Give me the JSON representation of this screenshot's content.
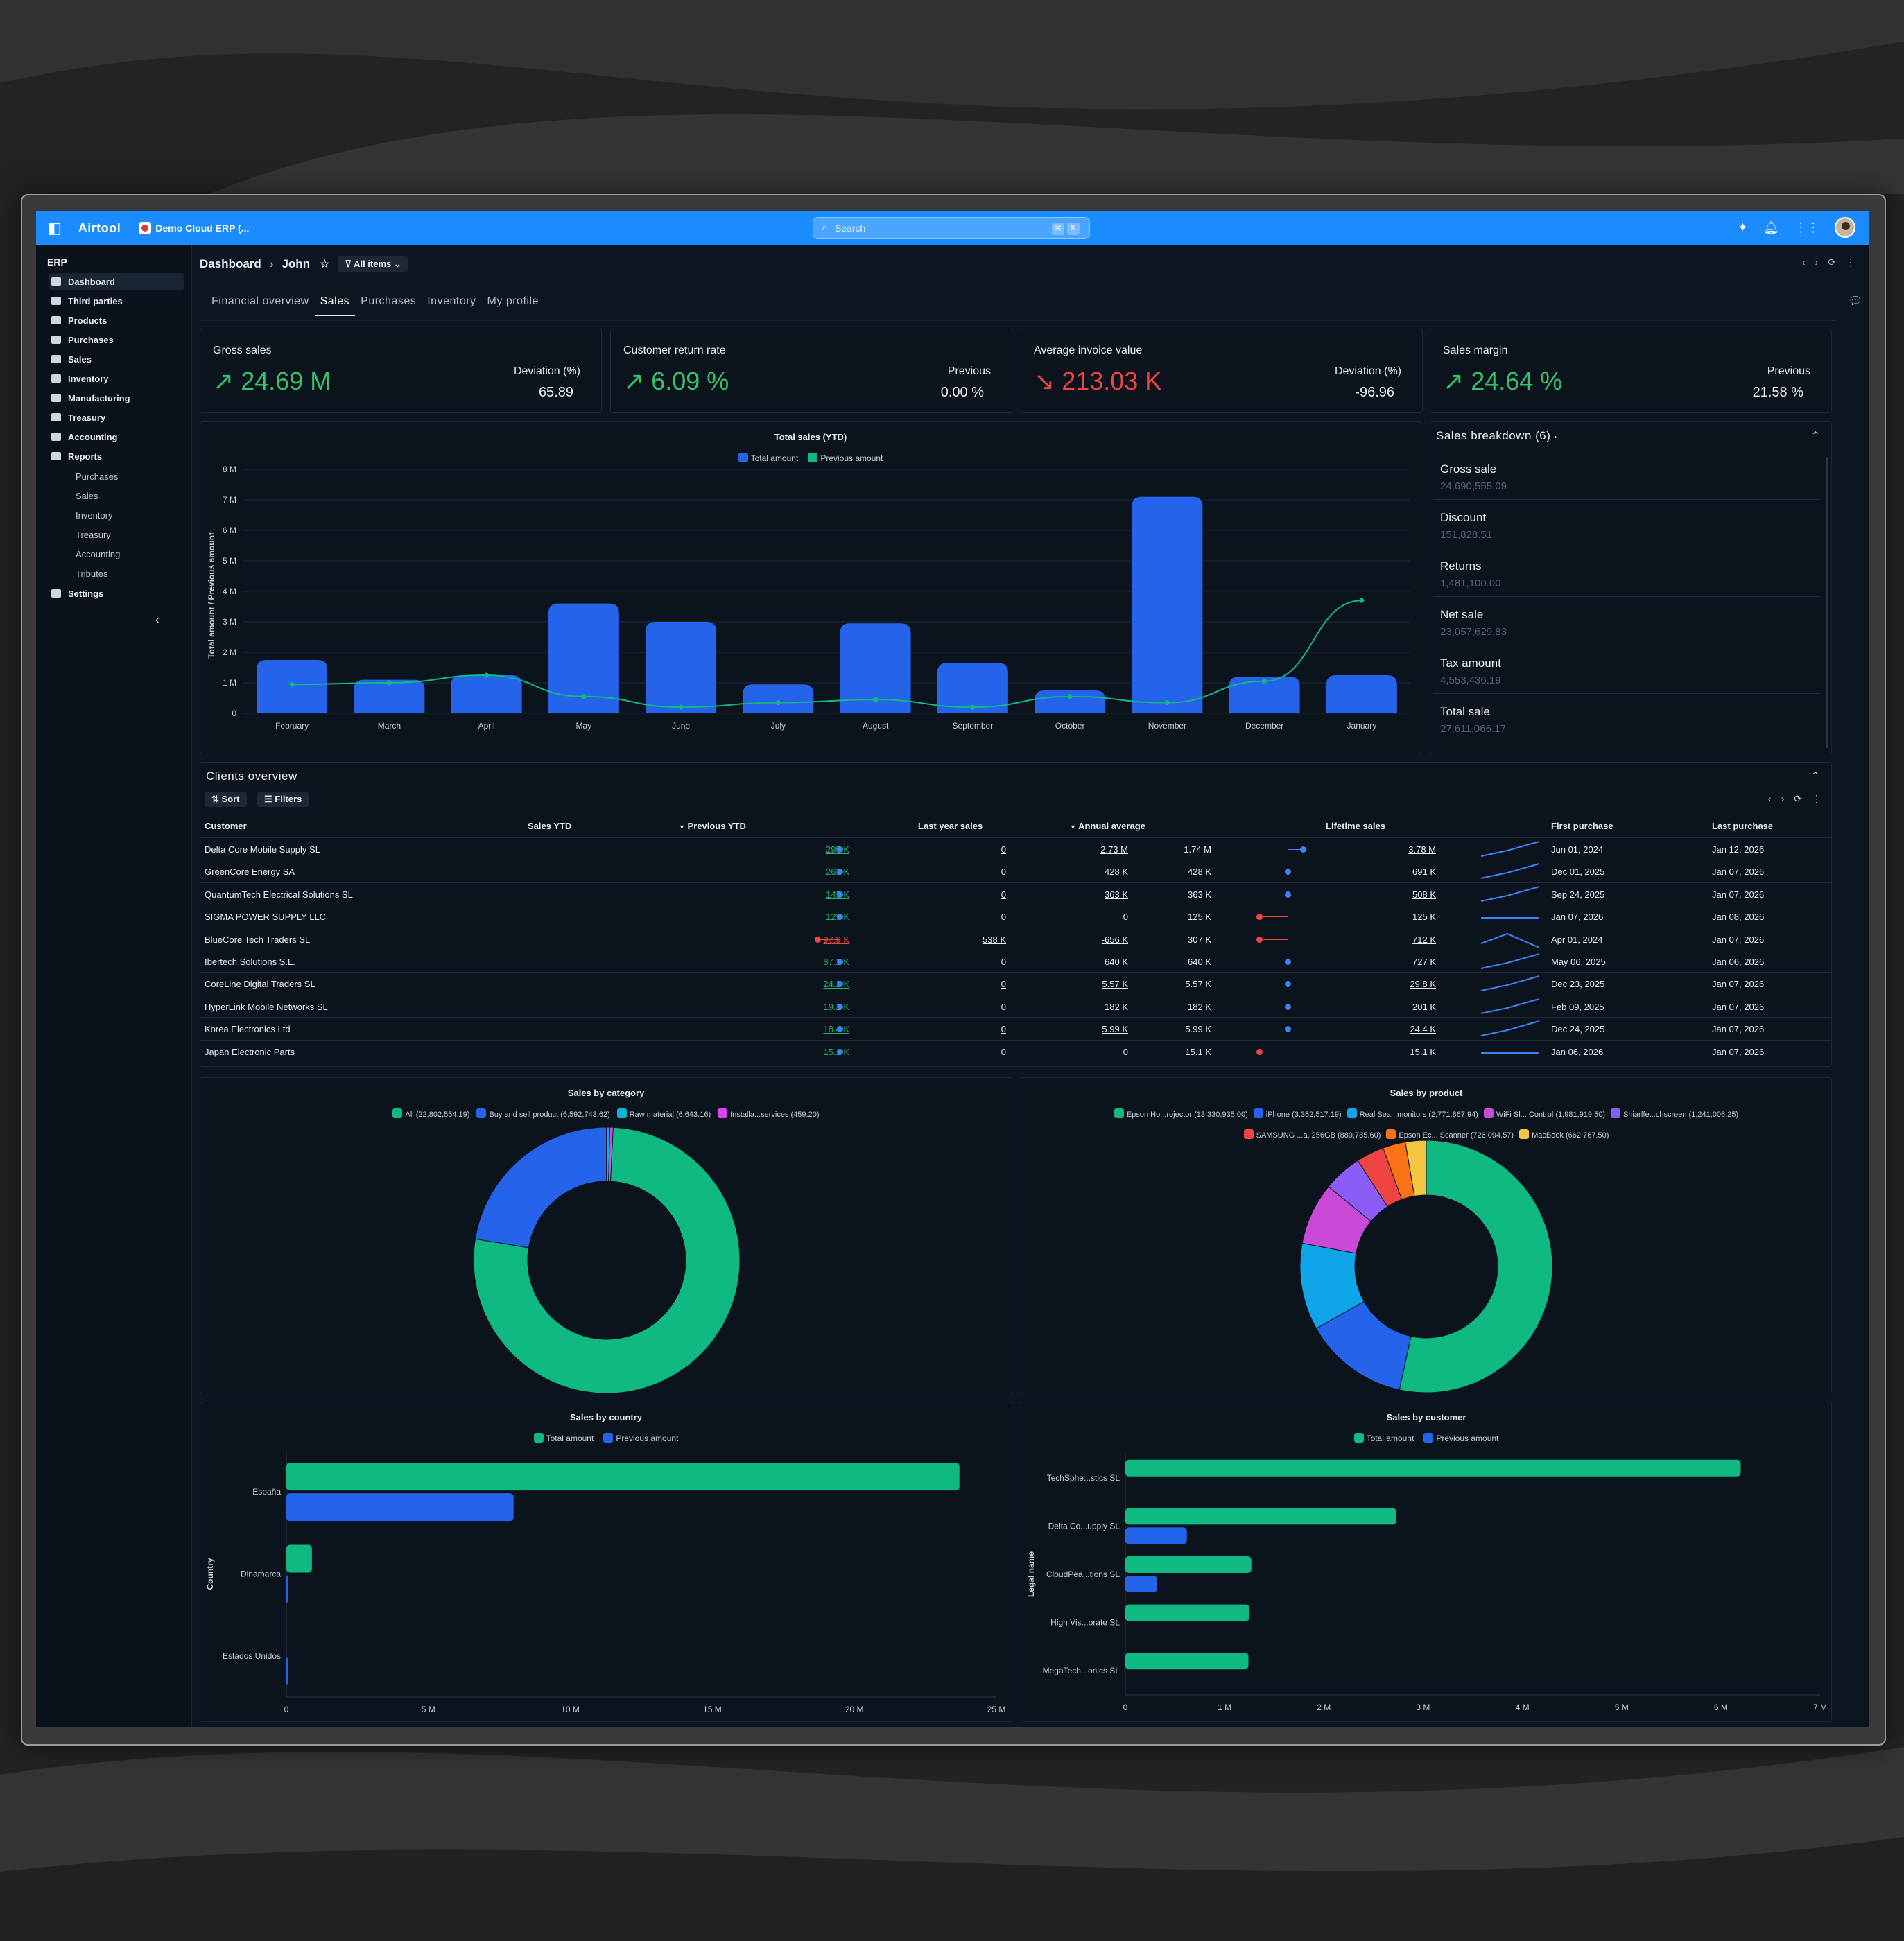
{
  "topbar": {
    "app_name": "Airtool",
    "company": "Demo Cloud ERP (...",
    "search_placeholder": "Search",
    "kbd1": "⌘",
    "kbd2": "K"
  },
  "sidebar": {
    "root": "ERP",
    "items": [
      "Dashboard",
      "Third parties",
      "Products",
      "Purchases",
      "Sales",
      "Inventory",
      "Manufacturing",
      "Treasury",
      "Accounting",
      "Reports"
    ],
    "report_items": [
      "Purchases",
      "Sales",
      "Inventory",
      "Treasury",
      "Accounting",
      "Tributes"
    ],
    "settings": "Settings"
  },
  "header": {
    "crumb1": "Dashboard",
    "crumb2": "John",
    "filter": "All items"
  },
  "tabs": [
    "Financial overview",
    "Sales",
    "Purchases",
    "Inventory",
    "My profile"
  ],
  "kpis": [
    {
      "title": "Gross sales",
      "value": "24.69 M",
      "trend": "up",
      "label": "Deviation (%)",
      "aux": "65.89"
    },
    {
      "title": "Customer return rate",
      "value": "6.09 %",
      "trend": "up",
      "label": "Previous",
      "aux": "0.00 %"
    },
    {
      "title": "Average invoice value",
      "value": "213.03 K",
      "trend": "down",
      "label": "Deviation (%)",
      "aux": "-96.96"
    },
    {
      "title": "Sales margin",
      "value": "24.64 %",
      "trend": "up",
      "label": "Previous",
      "aux": "21.58 %"
    }
  ],
  "colors": {
    "accent": "#1a8cff",
    "blue": "#2563eb",
    "green": "#10b981",
    "red": "#ef4444"
  },
  "breakdown": {
    "title": "Sales breakdown (6)",
    "items": [
      {
        "name": "Gross sale",
        "amount": "24,690,555.09"
      },
      {
        "name": "Discount",
        "amount": "151,828.51"
      },
      {
        "name": "Returns",
        "amount": "1,481,100.00"
      },
      {
        "name": "Net sale",
        "amount": "23,057,629.83"
      },
      {
        "name": "Tax amount",
        "amount": "4,553,436.19"
      },
      {
        "name": "Total sale",
        "amount": "27,611,066.17"
      }
    ]
  },
  "clients": {
    "title": "Clients overview",
    "sort": "Sort",
    "filters": "Filters",
    "headers": [
      "Customer",
      "Sales YTD",
      "Previous YTD",
      "Last year sales",
      "Annual average",
      "Lifetime sales",
      "First purchase",
      "Last purchase"
    ],
    "rows": [
      {
        "customer": "Delta Core Mobile Supply SL",
        "ytd": "295 K",
        "ytd_neg": false,
        "prev": "0",
        "last": "2.73 M",
        "avg": "1.74 M",
        "avg_dir": "up",
        "life": "3.78 M",
        "first": "Jun 01, 2024",
        "lastp": "Jan 12, 2026"
      },
      {
        "customer": "GreenCore Energy SA",
        "ytd": "263 K",
        "ytd_neg": false,
        "prev": "0",
        "last": "428 K",
        "avg": "428 K",
        "avg_dir": "mid",
        "life": "691 K",
        "first": "Dec 01, 2025",
        "lastp": "Jan 07, 2026"
      },
      {
        "customer": "QuantumTech Electrical Solutions SL",
        "ytd": "145 K",
        "ytd_neg": false,
        "prev": "0",
        "last": "363 K",
        "avg": "363 K",
        "avg_dir": "mid",
        "life": "508 K",
        "first": "Sep 24, 2025",
        "lastp": "Jan 07, 2026"
      },
      {
        "customer": "SIGMA POWER SUPPLY LLC",
        "ytd": "125 K",
        "ytd_neg": false,
        "prev": "0",
        "last": "0",
        "avg": "125 K",
        "avg_dir": "down",
        "life": "125 K",
        "first": "Jan 07, 2026",
        "lastp": "Jan 08, 2026"
      },
      {
        "customer": "BlueCore Tech Traders SL",
        "ytd": "97.9 K",
        "ytd_neg": true,
        "prev": "538 K",
        "last": "-656 K",
        "avg": "307 K",
        "avg_dir": "down",
        "life": "712 K",
        "first": "Apr 01, 2024",
        "lastp": "Jan 07, 2026"
      },
      {
        "customer": "Ibertech Solutions S.L.",
        "ytd": "87.1 K",
        "ytd_neg": false,
        "prev": "0",
        "last": "640 K",
        "avg": "640 K",
        "avg_dir": "mid",
        "life": "727 K",
        "first": "May 06, 2025",
        "lastp": "Jan 06, 2026"
      },
      {
        "customer": "CoreLine Digital Traders SL",
        "ytd": "24.2 K",
        "ytd_neg": false,
        "prev": "0",
        "last": "5.57 K",
        "avg": "5.57 K",
        "avg_dir": "mid",
        "life": "29.8 K",
        "first": "Dec 23, 2025",
        "lastp": "Jan 07, 2026"
      },
      {
        "customer": "HyperLink Mobile Networks SL",
        "ytd": "19.1 K",
        "ytd_neg": false,
        "prev": "0",
        "last": "182 K",
        "avg": "182 K",
        "avg_dir": "mid",
        "life": "201 K",
        "first": "Feb 09, 2025",
        "lastp": "Jan 07, 2026"
      },
      {
        "customer": "Korea Electronics Ltd",
        "ytd": "18.4 K",
        "ytd_neg": false,
        "prev": "0",
        "last": "5.99 K",
        "avg": "5.99 K",
        "avg_dir": "mid",
        "life": "24.4 K",
        "first": "Dec 24, 2025",
        "lastp": "Jan 07, 2026"
      },
      {
        "customer": "Japan Electronic Parts",
        "ytd": "15.1 K",
        "ytd_neg": false,
        "prev": "0",
        "last": "0",
        "avg": "15.1 K",
        "avg_dir": "down",
        "life": "15.1 K",
        "first": "Jan 06, 2026",
        "lastp": "Jan 07, 2026"
      }
    ]
  },
  "chart_data": [
    {
      "type": "bar",
      "title": "Total sales (YTD)",
      "ylabel": "Total amount / Previous amount",
      "categories": [
        "February",
        "March",
        "April",
        "May",
        "June",
        "July",
        "August",
        "September",
        "October",
        "November",
        "December",
        "January"
      ],
      "series": [
        {
          "name": "Total amount",
          "values": [
            1.75,
            1.1,
            1.25,
            3.6,
            3.0,
            0.95,
            2.95,
            1.65,
            0.75,
            7.1,
            1.2,
            1.25
          ]
        },
        {
          "name": "Previous amount",
          "values": [
            0.95,
            1.0,
            1.25,
            0.55,
            0.2,
            0.35,
            0.45,
            0.2,
            0.55,
            0.35,
            1.05,
            3.7
          ]
        }
      ],
      "ylim": [
        0,
        8
      ],
      "yticks": [
        "0",
        "1 M",
        "2 M",
        "3 M",
        "4 M",
        "5 M",
        "6 M",
        "7 M",
        "8 M"
      ]
    },
    {
      "type": "pie",
      "title": "Sales by category",
      "labels": [
        "All (22,802,554.19)",
        "Buy and sell product (6,592,743.62)",
        "Raw material (6,643.16)",
        "Installa...services (459.20)"
      ],
      "values": [
        22802554.19,
        6592743.62,
        6643.16,
        459.2
      ],
      "colors": [
        "#10b981",
        "#2563eb",
        "#06b6d4",
        "#d946ef"
      ]
    },
    {
      "type": "pie",
      "title": "Sales by product",
      "labels": [
        "Epson Ho...rojector (13,330,935.00)",
        "iPhone (3,352,517.19)",
        "Real Sea...monitors (2,771,867.94)",
        "WiFi Sl... Control (1,981,919.50)",
        "Shiarffe...chscreen (1,241,006.25)",
        "SAMSUNG ...a, 256GB (889,785.60)",
        "Epson Ec... Scanner (726,094.57)",
        "MacBook (662,767.50)"
      ],
      "values": [
        13330935.0,
        3352517.19,
        2771867.94,
        1981919.5,
        1241006.25,
        889785.6,
        726094.57,
        662767.5
      ],
      "colors": [
        "#10b981",
        "#2563eb",
        "#0ea5e9",
        "#c84ad6",
        "#8b5cf6",
        "#ef4444",
        "#f97316",
        "#f5c542"
      ]
    },
    {
      "type": "bar",
      "orientation": "horizontal",
      "title": "Sales by country",
      "ylabel": "Country",
      "categories": [
        "España",
        "Dinamarca",
        "Estados Unidos"
      ],
      "series": [
        {
          "name": "Total amount",
          "values": [
            23.7,
            0.9,
            0
          ]
        },
        {
          "name": "Previous amount",
          "values": [
            8.0,
            0.05,
            0.02
          ]
        }
      ],
      "xlim": [
        0,
        25
      ],
      "xticks": [
        "0",
        "5 M",
        "10 M",
        "15 M",
        "20 M",
        "25 M"
      ]
    },
    {
      "type": "bar",
      "orientation": "horizontal",
      "title": "Sales by customer",
      "ylabel": "Legal name",
      "categories": [
        "TechSphe...stics SL",
        "Delta Co...upply SL",
        "CloudPea...tions SL",
        "High Vis...orate SL",
        "MegaTech...onics SL"
      ],
      "series": [
        {
          "name": "Total amount",
          "values": [
            6.2,
            2.73,
            1.27,
            1.25,
            1.24
          ]
        },
        {
          "name": "Previous amount",
          "values": [
            0,
            0.62,
            0.32,
            0,
            0
          ]
        }
      ],
      "xlim": [
        0,
        7
      ],
      "xticks": [
        "0",
        "1 M",
        "2 M",
        "3 M",
        "4 M",
        "5 M",
        "6 M",
        "7 M"
      ]
    }
  ]
}
